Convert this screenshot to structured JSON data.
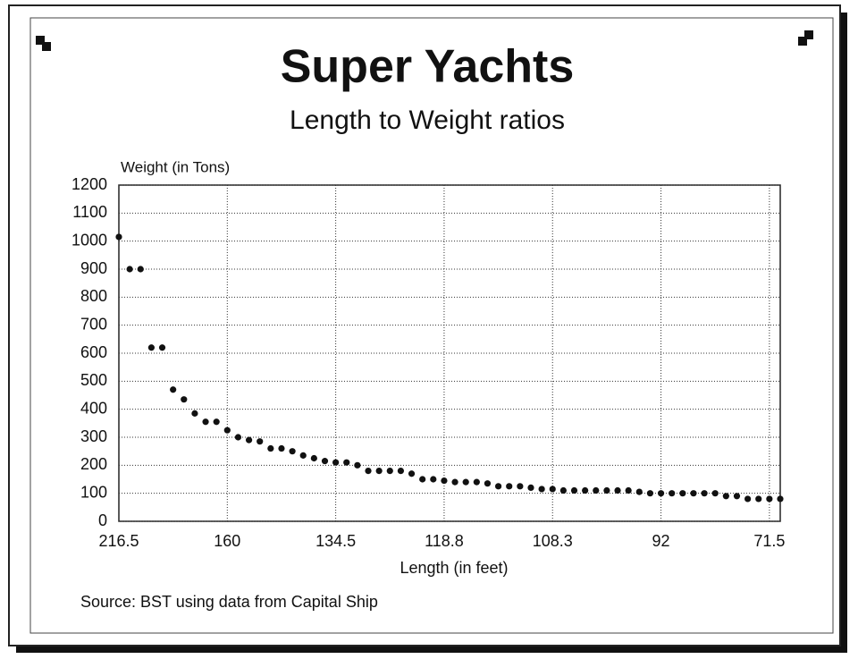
{
  "chart_data": {
    "type": "scatter",
    "title": "Super Yachts",
    "subtitle": "Length to Weight ratios",
    "y_label": "Weight (in Tons)",
    "x_label": "Length (in feet)",
    "source": "Source: BST using data from Capital Ship",
    "categories": [
      "216.5",
      null,
      null,
      null,
      null,
      null,
      null,
      null,
      null,
      null,
      "160",
      null,
      null,
      null,
      null,
      null,
      null,
      null,
      null,
      null,
      "134.5",
      null,
      null,
      null,
      null,
      null,
      null,
      null,
      null,
      null,
      "118.8",
      null,
      null,
      null,
      null,
      null,
      null,
      null,
      null,
      null,
      "108.3",
      null,
      null,
      null,
      null,
      null,
      null,
      null,
      null,
      null,
      "92",
      null,
      null,
      null,
      null,
      null,
      null,
      null,
      null,
      null,
      "71.5",
      null
    ],
    "values": [
      1015,
      900,
      900,
      620,
      620,
      470,
      435,
      385,
      355,
      355,
      325,
      300,
      290,
      285,
      260,
      260,
      250,
      235,
      225,
      215,
      210,
      210,
      200,
      180,
      180,
      180,
      180,
      170,
      150,
      150,
      145,
      140,
      140,
      140,
      135,
      125,
      125,
      125,
      120,
      115,
      115,
      110,
      110,
      110,
      110,
      110,
      110,
      110,
      105,
      100,
      100,
      100,
      100,
      100,
      100,
      100,
      90,
      90,
      80,
      80,
      80,
      80
    ],
    "color": "#111111",
    "ylim": [
      0,
      1200
    ],
    "yticks": [
      0,
      100,
      200,
      300,
      400,
      500,
      600,
      700,
      800,
      900,
      1000,
      1100,
      1200
    ],
    "grid": true
  }
}
